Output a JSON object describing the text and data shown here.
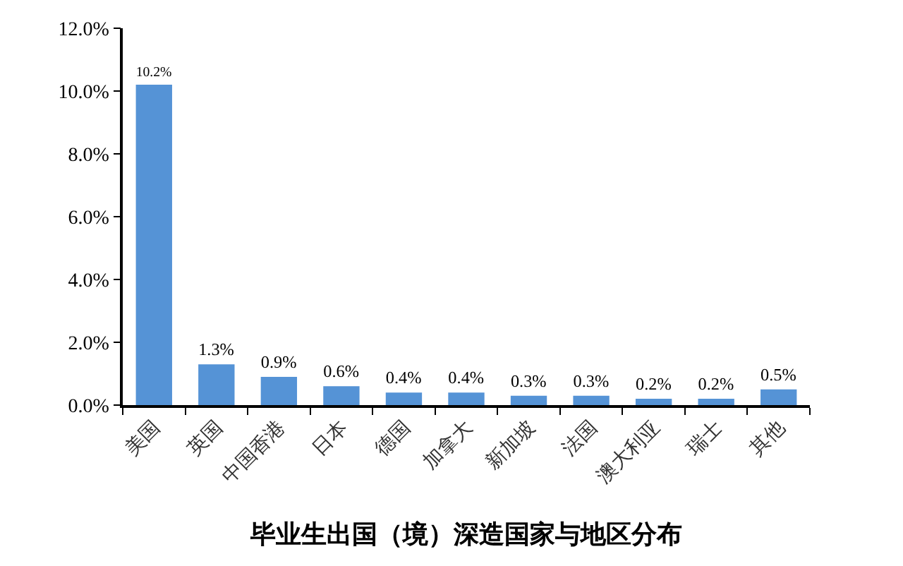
{
  "chart_data": {
    "type": "bar",
    "title": "毕业生出国（境）深造国家与地区分布",
    "categories": [
      "美国",
      "英国",
      "中国香港",
      "日本",
      "德国",
      "加拿大",
      "新加坡",
      "法国",
      "澳大利亚",
      "瑞士",
      "其他"
    ],
    "values": [
      10.2,
      1.3,
      0.9,
      0.6,
      0.4,
      0.4,
      0.3,
      0.3,
      0.2,
      0.2,
      0.5
    ],
    "value_labels": [
      "10.2%",
      "1.3%",
      "0.9%",
      "0.6%",
      "0.4%",
      "0.4%",
      "0.3%",
      "0.3%",
      "0.2%",
      "0.2%",
      "0.5%"
    ],
    "color": "#5593d6",
    "ylim": [
      0,
      12
    ],
    "yticks": [
      {
        "value": 0,
        "label": "0.0%"
      },
      {
        "value": 2,
        "label": "2.0%"
      },
      {
        "value": 4,
        "label": "4.0%"
      },
      {
        "value": 6,
        "label": "6.0%"
      },
      {
        "value": 8,
        "label": "8.0%"
      },
      {
        "value": 10,
        "label": "10.0%"
      },
      {
        "value": 12,
        "label": "12.0%"
      }
    ]
  }
}
